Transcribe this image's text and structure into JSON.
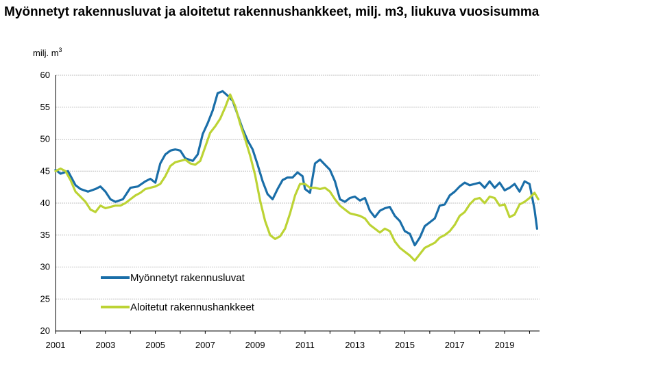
{
  "chart_data": {
    "type": "line",
    "title": "Myönnetyt rakennusluvat ja aloitetut rakennushankkeet, milj. m3, liukuva vuosisumma",
    "ylabel": "milj. m",
    "ylabel_sup": "3",
    "xlabel": "",
    "ylim": [
      20,
      60
    ],
    "yticks": [
      20,
      25,
      30,
      35,
      40,
      45,
      50,
      55,
      60
    ],
    "xlim": [
      2001,
      2020.4
    ],
    "xticks": [
      2001,
      2003,
      2005,
      2007,
      2009,
      2011,
      2013,
      2015,
      2017,
      2019
    ],
    "grid": true,
    "legend_position": "bottom-left",
    "series": [
      {
        "name": "Myönnetyt rakennusluvat",
        "color": "#1a6ea8",
        "points": [
          [
            2001.0,
            45.2
          ],
          [
            2001.2,
            44.6
          ],
          [
            2001.5,
            45.0
          ],
          [
            2001.8,
            42.8
          ],
          [
            2002.0,
            42.2
          ],
          [
            2002.3,
            41.8
          ],
          [
            2002.6,
            42.2
          ],
          [
            2002.8,
            42.6
          ],
          [
            2003.0,
            41.8
          ],
          [
            2003.2,
            40.6
          ],
          [
            2003.4,
            40.2
          ],
          [
            2003.7,
            40.6
          ],
          [
            2004.0,
            42.4
          ],
          [
            2004.3,
            42.6
          ],
          [
            2004.6,
            43.4
          ],
          [
            2004.8,
            43.8
          ],
          [
            2005.0,
            43.2
          ],
          [
            2005.2,
            46.2
          ],
          [
            2005.4,
            47.6
          ],
          [
            2005.6,
            48.2
          ],
          [
            2005.8,
            48.4
          ],
          [
            2006.0,
            48.2
          ],
          [
            2006.2,
            47.0
          ],
          [
            2006.5,
            46.6
          ],
          [
            2006.7,
            47.6
          ],
          [
            2006.9,
            50.8
          ],
          [
            2007.1,
            52.5
          ],
          [
            2007.3,
            54.5
          ],
          [
            2007.5,
            57.2
          ],
          [
            2007.7,
            57.5
          ],
          [
            2007.9,
            56.8
          ],
          [
            2008.1,
            56.0
          ],
          [
            2008.3,
            53.8
          ],
          [
            2008.5,
            51.6
          ],
          [
            2008.7,
            49.8
          ],
          [
            2008.9,
            48.4
          ],
          [
            2009.1,
            46.0
          ],
          [
            2009.3,
            43.4
          ],
          [
            2009.5,
            41.4
          ],
          [
            2009.7,
            40.6
          ],
          [
            2009.9,
            42.2
          ],
          [
            2010.1,
            43.6
          ],
          [
            2010.3,
            44.0
          ],
          [
            2010.5,
            44.0
          ],
          [
            2010.7,
            44.8
          ],
          [
            2010.9,
            44.2
          ],
          [
            2011.0,
            42.2
          ],
          [
            2011.2,
            41.6
          ],
          [
            2011.4,
            46.2
          ],
          [
            2011.6,
            46.8
          ],
          [
            2011.8,
            46.0
          ],
          [
            2012.0,
            45.2
          ],
          [
            2012.2,
            43.4
          ],
          [
            2012.4,
            40.6
          ],
          [
            2012.6,
            40.2
          ],
          [
            2012.8,
            40.8
          ],
          [
            2013.0,
            41.0
          ],
          [
            2013.2,
            40.4
          ],
          [
            2013.4,
            40.8
          ],
          [
            2013.6,
            38.8
          ],
          [
            2013.8,
            37.8
          ],
          [
            2014.0,
            38.8
          ],
          [
            2014.2,
            39.2
          ],
          [
            2014.4,
            39.4
          ],
          [
            2014.6,
            38.0
          ],
          [
            2014.8,
            37.2
          ],
          [
            2015.0,
            35.6
          ],
          [
            2015.2,
            35.2
          ],
          [
            2015.4,
            33.4
          ],
          [
            2015.6,
            34.6
          ],
          [
            2015.8,
            36.4
          ],
          [
            2016.0,
            37.0
          ],
          [
            2016.2,
            37.6
          ],
          [
            2016.4,
            39.6
          ],
          [
            2016.6,
            39.8
          ],
          [
            2016.8,
            41.2
          ],
          [
            2017.0,
            41.8
          ],
          [
            2017.2,
            42.6
          ],
          [
            2017.4,
            43.2
          ],
          [
            2017.6,
            42.8
          ],
          [
            2017.8,
            43.0
          ],
          [
            2018.0,
            43.2
          ],
          [
            2018.2,
            42.4
          ],
          [
            2018.4,
            43.4
          ],
          [
            2018.6,
            42.4
          ],
          [
            2018.8,
            43.2
          ],
          [
            2019.0,
            42.0
          ],
          [
            2019.2,
            42.4
          ],
          [
            2019.4,
            43.0
          ],
          [
            2019.6,
            41.8
          ],
          [
            2019.8,
            43.4
          ],
          [
            2020.0,
            43.0
          ],
          [
            2020.1,
            41.0
          ],
          [
            2020.2,
            39.0
          ],
          [
            2020.3,
            36.0
          ]
        ]
      },
      {
        "name": "Aloitetut rakennushankkeet",
        "color": "#bcd334",
        "points": [
          [
            2001.0,
            45.0
          ],
          [
            2001.2,
            45.4
          ],
          [
            2001.4,
            45.0
          ],
          [
            2001.6,
            43.6
          ],
          [
            2001.8,
            41.8
          ],
          [
            2002.0,
            41.0
          ],
          [
            2002.2,
            40.2
          ],
          [
            2002.4,
            39.0
          ],
          [
            2002.6,
            38.6
          ],
          [
            2002.8,
            39.6
          ],
          [
            2003.0,
            39.2
          ],
          [
            2003.2,
            39.4
          ],
          [
            2003.4,
            39.6
          ],
          [
            2003.6,
            39.6
          ],
          [
            2003.8,
            40.0
          ],
          [
            2004.0,
            40.6
          ],
          [
            2004.2,
            41.2
          ],
          [
            2004.4,
            41.6
          ],
          [
            2004.6,
            42.2
          ],
          [
            2004.8,
            42.4
          ],
          [
            2005.0,
            42.6
          ],
          [
            2005.2,
            43.0
          ],
          [
            2005.4,
            44.2
          ],
          [
            2005.6,
            45.8
          ],
          [
            2005.8,
            46.4
          ],
          [
            2006.0,
            46.6
          ],
          [
            2006.2,
            46.8
          ],
          [
            2006.4,
            46.2
          ],
          [
            2006.6,
            46.0
          ],
          [
            2006.8,
            46.6
          ],
          [
            2007.0,
            48.8
          ],
          [
            2007.2,
            51.0
          ],
          [
            2007.4,
            52.0
          ],
          [
            2007.6,
            53.2
          ],
          [
            2007.8,
            55.0
          ],
          [
            2008.0,
            57.0
          ],
          [
            2008.2,
            55.2
          ],
          [
            2008.4,
            52.4
          ],
          [
            2008.6,
            50.0
          ],
          [
            2008.8,
            47.4
          ],
          [
            2009.0,
            44.4
          ],
          [
            2009.2,
            40.4
          ],
          [
            2009.4,
            37.2
          ],
          [
            2009.6,
            35.0
          ],
          [
            2009.8,
            34.4
          ],
          [
            2010.0,
            34.8
          ],
          [
            2010.2,
            36.0
          ],
          [
            2010.4,
            38.4
          ],
          [
            2010.6,
            41.2
          ],
          [
            2010.8,
            43.0
          ],
          [
            2011.0,
            43.0
          ],
          [
            2011.2,
            42.4
          ],
          [
            2011.4,
            42.4
          ],
          [
            2011.6,
            42.2
          ],
          [
            2011.8,
            42.4
          ],
          [
            2012.0,
            41.8
          ],
          [
            2012.2,
            40.6
          ],
          [
            2012.4,
            39.6
          ],
          [
            2012.6,
            39.0
          ],
          [
            2012.8,
            38.4
          ],
          [
            2013.0,
            38.2
          ],
          [
            2013.2,
            38.0
          ],
          [
            2013.4,
            37.6
          ],
          [
            2013.6,
            36.6
          ],
          [
            2013.8,
            36.0
          ],
          [
            2014.0,
            35.4
          ],
          [
            2014.2,
            36.0
          ],
          [
            2014.4,
            35.6
          ],
          [
            2014.6,
            34.0
          ],
          [
            2014.8,
            33.0
          ],
          [
            2015.0,
            32.4
          ],
          [
            2015.2,
            31.8
          ],
          [
            2015.4,
            31.0
          ],
          [
            2015.6,
            32.0
          ],
          [
            2015.8,
            33.0
          ],
          [
            2016.0,
            33.4
          ],
          [
            2016.2,
            33.8
          ],
          [
            2016.4,
            34.6
          ],
          [
            2016.6,
            35.0
          ],
          [
            2016.8,
            35.6
          ],
          [
            2017.0,
            36.6
          ],
          [
            2017.2,
            38.0
          ],
          [
            2017.4,
            38.6
          ],
          [
            2017.6,
            39.8
          ],
          [
            2017.8,
            40.6
          ],
          [
            2018.0,
            40.8
          ],
          [
            2018.2,
            40.0
          ],
          [
            2018.4,
            41.0
          ],
          [
            2018.6,
            40.8
          ],
          [
            2018.8,
            39.6
          ],
          [
            2019.0,
            39.8
          ],
          [
            2019.2,
            37.8
          ],
          [
            2019.4,
            38.2
          ],
          [
            2019.6,
            39.8
          ],
          [
            2019.8,
            40.2
          ],
          [
            2020.0,
            40.8
          ],
          [
            2020.2,
            41.6
          ],
          [
            2020.35,
            40.6
          ]
        ]
      }
    ]
  }
}
